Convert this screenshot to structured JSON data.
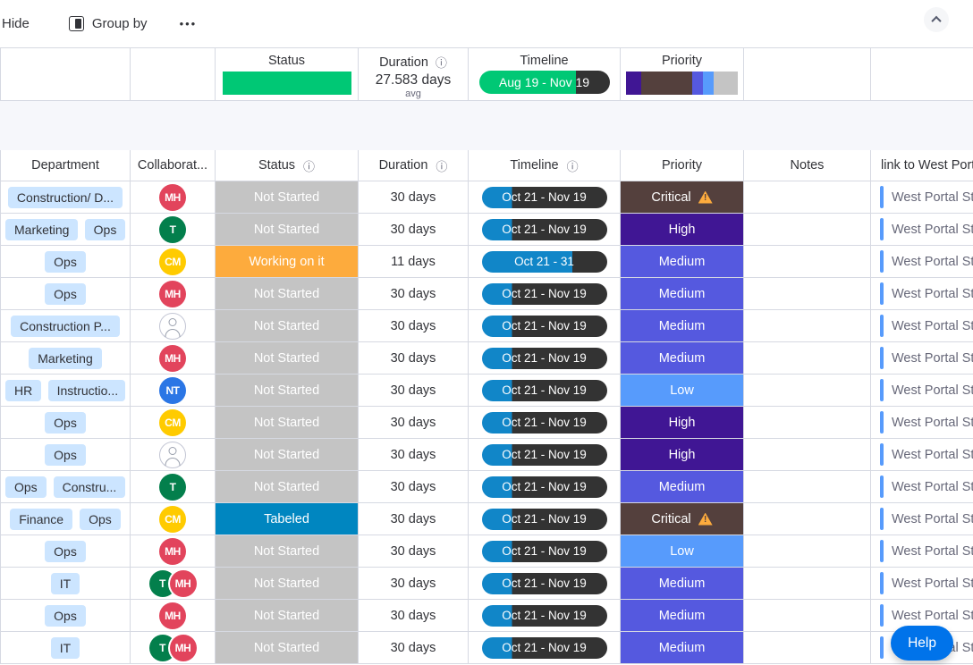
{
  "toolbar": {
    "hide": "Hide",
    "group_by": "Group by",
    "more": "•••"
  },
  "summary": {
    "status_label": "Status",
    "status_bar_color": "#00c875",
    "duration_label": "Duration",
    "duration_value": "27.583 days",
    "duration_sub": "avg",
    "timeline_label": "Timeline",
    "timeline_value": "Aug 19 - Nov 19",
    "timeline_fill_percent": 74,
    "priority_label": "Priority",
    "priority_segments": [
      {
        "color": "#401694",
        "percent": 14
      },
      {
        "color": "#54403d",
        "percent": 45
      },
      {
        "color": "#5559df",
        "percent": 10
      },
      {
        "color": "#579bfc",
        "percent": 9
      },
      {
        "color": "#c4c4c4",
        "percent": 22
      }
    ]
  },
  "columns": [
    {
      "label": "Department"
    },
    {
      "label": "Collaborat..."
    },
    {
      "label": "Status",
      "info": true
    },
    {
      "label": "Duration",
      "info": true
    },
    {
      "label": "Timeline",
      "info": true
    },
    {
      "label": "Priority"
    },
    {
      "label": "Notes"
    },
    {
      "label": "link to West Port"
    }
  ],
  "status_colors": {
    "Not Started": "#c4c4c4",
    "Working on it": "#fdab3d",
    "Tabeled": "#0086c0"
  },
  "priority_colors": {
    "Critical": "#54403d",
    "High": "#401694",
    "Medium": "#5559df",
    "Low": "#579bfc"
  },
  "avatar_colors": {
    "MH": "#e2445c",
    "T": "#037f4c",
    "CM": "#ffcb00",
    "NT": "#2b76e5"
  },
  "timeline_colors": {
    "elapsed": "#1186c8",
    "remaining": "#333333",
    "summary_elapsed": "#00c875"
  },
  "link_bar_color": "#579bfc",
  "rows": [
    {
      "departments": [
        "Construction/ D..."
      ],
      "collaborators": [
        "MH"
      ],
      "status": "Not Started",
      "duration": "30 days",
      "timeline": "Oct 21 - Nov 19",
      "timeline_fill": 24,
      "priority": "Critical",
      "warning": true,
      "notes": "",
      "link": "West Portal St."
    },
    {
      "departments": [
        "Marketing",
        "Ops"
      ],
      "collaborators": [
        "T"
      ],
      "status": "Not Started",
      "duration": "30 days",
      "timeline": "Oct 21 - Nov 19",
      "timeline_fill": 24,
      "priority": "High",
      "warning": false,
      "notes": "",
      "link": "West Portal St."
    },
    {
      "departments": [
        "Ops"
      ],
      "collaborators": [
        "CM"
      ],
      "status": "Working on it",
      "duration": "11 days",
      "timeline": "Oct 21 - 31",
      "timeline_fill": 72,
      "priority": "Medium",
      "warning": false,
      "notes": "",
      "link": "West Portal St."
    },
    {
      "departments": [
        "Ops"
      ],
      "collaborators": [
        "MH"
      ],
      "status": "Not Started",
      "duration": "30 days",
      "timeline": "Oct 21 - Nov 19",
      "timeline_fill": 24,
      "priority": "Medium",
      "warning": false,
      "notes": "",
      "link": "West Portal St."
    },
    {
      "departments": [
        "Construction P..."
      ],
      "collaborators": [
        ""
      ],
      "status": "Not Started",
      "duration": "30 days",
      "timeline": "Oct 21 - Nov 19",
      "timeline_fill": 24,
      "priority": "Medium",
      "warning": false,
      "notes": "",
      "link": "West Portal St."
    },
    {
      "departments": [
        "Marketing"
      ],
      "collaborators": [
        "MH"
      ],
      "status": "Not Started",
      "duration": "30 days",
      "timeline": "Oct 21 - Nov 19",
      "timeline_fill": 24,
      "priority": "Medium",
      "warning": false,
      "notes": "",
      "link": "West Portal St."
    },
    {
      "departments": [
        "HR",
        "Instructio..."
      ],
      "collaborators": [
        "NT"
      ],
      "status": "Not Started",
      "duration": "30 days",
      "timeline": "Oct 21 - Nov 19",
      "timeline_fill": 24,
      "priority": "Low",
      "warning": false,
      "notes": "",
      "link": "West Portal St."
    },
    {
      "departments": [
        "Ops"
      ],
      "collaborators": [
        "CM"
      ],
      "status": "Not Started",
      "duration": "30 days",
      "timeline": "Oct 21 - Nov 19",
      "timeline_fill": 24,
      "priority": "High",
      "warning": false,
      "notes": "",
      "link": "West Portal St."
    },
    {
      "departments": [
        "Ops"
      ],
      "collaborators": [
        ""
      ],
      "status": "Not Started",
      "duration": "30 days",
      "timeline": "Oct 21 - Nov 19",
      "timeline_fill": 24,
      "priority": "High",
      "warning": false,
      "notes": "",
      "link": "West Portal St."
    },
    {
      "departments": [
        "Ops",
        "Constru..."
      ],
      "collaborators": [
        "T"
      ],
      "status": "Not Started",
      "duration": "30 days",
      "timeline": "Oct 21 - Nov 19",
      "timeline_fill": 24,
      "priority": "Medium",
      "warning": false,
      "notes": "",
      "link": "West Portal St."
    },
    {
      "departments": [
        "Finance",
        "Ops"
      ],
      "collaborators": [
        "CM"
      ],
      "status": "Tabeled",
      "duration": "30 days",
      "timeline": "Oct 21 - Nov 19",
      "timeline_fill": 24,
      "priority": "Critical",
      "warning": true,
      "notes": "",
      "link": "West Portal St."
    },
    {
      "departments": [
        "Ops"
      ],
      "collaborators": [
        "MH"
      ],
      "status": "Not Started",
      "duration": "30 days",
      "timeline": "Oct 21 - Nov 19",
      "timeline_fill": 24,
      "priority": "Low",
      "warning": false,
      "notes": "",
      "link": "West Portal St."
    },
    {
      "departments": [
        "IT"
      ],
      "collaborators": [
        "T",
        "MH"
      ],
      "status": "Not Started",
      "duration": "30 days",
      "timeline": "Oct 21 - Nov 19",
      "timeline_fill": 24,
      "priority": "Medium",
      "warning": false,
      "notes": "",
      "link": "West Portal St."
    },
    {
      "departments": [
        "Ops"
      ],
      "collaborators": [
        "MH"
      ],
      "status": "Not Started",
      "duration": "30 days",
      "timeline": "Oct 21 - Nov 19",
      "timeline_fill": 24,
      "priority": "Medium",
      "warning": false,
      "notes": "",
      "link": "West Portal St."
    },
    {
      "departments": [
        "IT"
      ],
      "collaborators": [
        "T",
        "MH"
      ],
      "status": "Not Started",
      "duration": "30 days",
      "timeline": "Oct 21 - Nov 19",
      "timeline_fill": 24,
      "priority": "Medium",
      "warning": false,
      "notes": "",
      "link": "West Portal St."
    }
  ],
  "help": "Help",
  "icons": {
    "info": "ⓘ"
  }
}
